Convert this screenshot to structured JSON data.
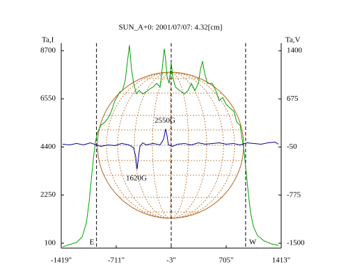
{
  "chart_data": {
    "type": "line",
    "title": "SUN_A+0: 2001/07/07: 4.32[cm]",
    "ylabel": "Ta,I",
    "y2label": "Ta,V",
    "xlim": [
      -1419,
      1413
    ],
    "xticks": [
      {
        "value": -1419,
        "label": "-1419\""
      },
      {
        "value": -711,
        "label": "-711\""
      },
      {
        "value": -3,
        "label": "-3\""
      },
      {
        "value": 705,
        "label": "705\""
      },
      {
        "value": 1413,
        "label": "1413\""
      }
    ],
    "ylim": [
      -120,
      9040
    ],
    "yticks": [
      100,
      2250,
      4400,
      6550,
      8700
    ],
    "y2lim": [
      -1574,
      1516
    ],
    "y2ticks": [
      -1500,
      -775,
      -50,
      675,
      1400
    ],
    "vlines": [
      {
        "x": -965,
        "label": "E"
      },
      {
        "x": -3
      },
      {
        "x": 955,
        "label": "W"
      }
    ],
    "annotations": [
      "2550G",
      "1620G"
    ],
    "series": [
      {
        "color": "#00a000",
        "x": [
          -1401,
          -1311,
          -1222,
          -1150,
          -1096,
          -1060,
          -1034,
          -1007,
          -980,
          -953,
          -908,
          -863,
          -819,
          -774,
          -729,
          -702,
          -666,
          -630,
          -594,
          -568,
          -541,
          -514,
          -487,
          -451,
          -415,
          -370,
          -326,
          -281,
          -236,
          -191,
          -146,
          -120,
          -93,
          -75,
          -57,
          -30,
          -3,
          15,
          51,
          105,
          167,
          212,
          257,
          302,
          347,
          373,
          400,
          427,
          463,
          526,
          571,
          615,
          660,
          705,
          750,
          804,
          839,
          884,
          911,
          938,
          965,
          992,
          1019,
          1055,
          1108,
          1198,
          1288,
          1378
        ],
        "values": [
          -60,
          40,
          130,
          380,
          1000,
          1940,
          2870,
          3810,
          4590,
          5050,
          5370,
          5490,
          5680,
          5990,
          6460,
          6610,
          6860,
          6920,
          7390,
          8170,
          8950,
          7860,
          7240,
          6770,
          6920,
          6770,
          6860,
          6990,
          7080,
          7240,
          7080,
          7860,
          8790,
          8330,
          7550,
          7240,
          8170,
          7550,
          7080,
          6920,
          6770,
          6920,
          7240,
          6920,
          7240,
          7860,
          8230,
          7700,
          7240,
          7240,
          6920,
          6460,
          6610,
          6300,
          6150,
          5990,
          5520,
          5370,
          4740,
          4120,
          3180,
          2250,
          1470,
          840,
          440,
          190,
          70,
          0
        ]
      },
      {
        "color": "#00008b",
        "axis": "y2",
        "x": [
          -1401,
          -1311,
          -1222,
          -1132,
          -1043,
          -971,
          -908,
          -819,
          -729,
          -640,
          -550,
          -487,
          -460,
          -442,
          -424,
          -406,
          -370,
          -326,
          -236,
          -146,
          -102,
          -75,
          -57,
          -39,
          15,
          78,
          167,
          257,
          347,
          436,
          526,
          615,
          705,
          795,
          884,
          974,
          1063,
          1153,
          1243,
          1332,
          1378
        ],
        "values": [
          -8,
          -18,
          3,
          -18,
          13,
          -18,
          -40,
          -18,
          -29,
          3,
          -18,
          -60,
          -197,
          -386,
          -197,
          -40,
          13,
          -18,
          3,
          -18,
          66,
          223,
          118,
          -18,
          -40,
          -8,
          3,
          -18,
          13,
          -8,
          3,
          13,
          -8,
          3,
          -18,
          13,
          3,
          -8,
          13,
          24,
          -8
        ]
      }
    ]
  }
}
